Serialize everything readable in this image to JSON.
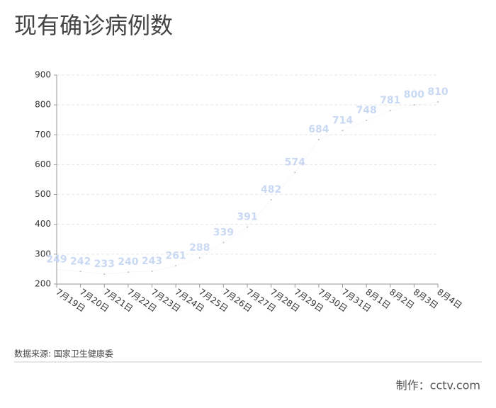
{
  "chart_data": {
    "type": "line",
    "title": "现有确诊病例数",
    "categories": [
      "7月19日",
      "7月20日",
      "7月21日",
      "7月22日",
      "7月23日",
      "7月24日",
      "7月25日",
      "7月26日",
      "7月27日",
      "7月28日",
      "7月29日",
      "7月30日",
      "7月31日",
      "8月1日",
      "8月2日",
      "8月3日",
      "8月4日"
    ],
    "series": [
      {
        "name": "现有确诊病例数",
        "color": "#c9d8f3",
        "values": [
          249,
          242,
          233,
          240,
          243,
          261,
          288,
          339,
          391,
          482,
          574,
          684,
          714,
          748,
          781,
          800,
          810
        ]
      }
    ],
    "ylim": [
      200,
      900
    ],
    "yticks": [
      200,
      300,
      400,
      500,
      600,
      700,
      800,
      900
    ],
    "grid": true,
    "source": "数据来源: 国家卫生健康委",
    "credit": "制作：cctv.com"
  }
}
